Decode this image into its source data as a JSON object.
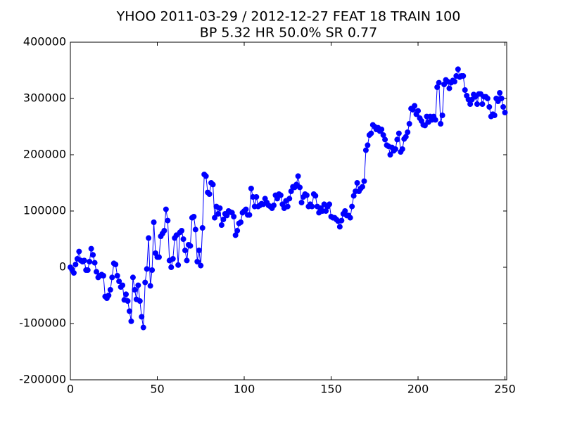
{
  "chart_data": {
    "type": "line",
    "title": "YHOO 2011-03-29 / 2012-12-27 FEAT 18 TRAIN 100",
    "subtitle": "BP 5.32 HR 50.0%  SR 0.77",
    "xlim": [
      0,
      251
    ],
    "xticks": [
      0,
      50,
      100,
      150,
      200,
      250
    ],
    "ylim": [
      -200000,
      400000
    ],
    "yticks": [
      -200000,
      -100000,
      0,
      100000,
      200000,
      300000,
      400000
    ],
    "grid": false,
    "series": [
      {
        "color": "#0000ff",
        "values": [
          0,
          -5000,
          -10000,
          5000,
          15000,
          28000,
          12000,
          10000,
          12000,
          -5000,
          -5000,
          10000,
          33000,
          22000,
          8000,
          -8000,
          -18000,
          -15000,
          -13000,
          -15000,
          -52000,
          -55000,
          -50000,
          -40000,
          -18000,
          7000,
          5000,
          -15000,
          -25000,
          -35000,
          -32000,
          -58000,
          -48000,
          -60000,
          -78000,
          -96000,
          -18000,
          -40000,
          -57000,
          -32000,
          -60000,
          -88000,
          -107000,
          -27000,
          -3000,
          52000,
          -33000,
          -5000,
          80000,
          25000,
          18000,
          18000,
          55000,
          60000,
          65000,
          103000,
          83000,
          12000,
          0,
          15000,
          52000,
          57000,
          4000,
          62000,
          65000,
          50000,
          30000,
          12000,
          40000,
          38000,
          88000,
          90000,
          67000,
          10000,
          30000,
          3000,
          70000,
          165000,
          162000,
          133000,
          130000,
          150000,
          147000,
          88000,
          108000,
          95000,
          105000,
          75000,
          85000,
          95000,
          92000,
          100000,
          98000,
          97000,
          90000,
          57000,
          65000,
          78000,
          80000,
          97000,
          100000,
          103000,
          93000,
          93000,
          140000,
          125000,
          108000,
          125000,
          108000,
          110000,
          113000,
          112000,
          122000,
          115000,
          110000,
          108000,
          105000,
          110000,
          128000,
          122000,
          130000,
          128000,
          112000,
          105000,
          118000,
          108000,
          122000,
          135000,
          143000,
          142000,
          147000,
          162000,
          142000,
          115000,
          125000,
          130000,
          128000,
          108000,
          112000,
          108000,
          130000,
          127000,
          108000,
          97000,
          105000,
          100000,
          112000,
          100000,
          108000,
          112000,
          90000,
          88000,
          88000,
          85000,
          82000,
          72000,
          83000,
          95000,
          100000,
          92000,
          92000,
          88000,
          108000,
          127000,
          135000,
          150000,
          135000,
          140000,
          143000,
          153000,
          208000,
          217000,
          235000,
          238000,
          253000,
          250000,
          245000,
          248000,
          242000,
          245000,
          235000,
          227000,
          217000,
          215000,
          200000,
          213000,
          207000,
          210000,
          227000,
          238000,
          205000,
          210000,
          228000,
          232000,
          240000,
          255000,
          282000,
          280000,
          287000,
          272000,
          278000,
          265000,
          260000,
          253000,
          252000,
          268000,
          258000,
          268000,
          262000,
          268000,
          262000,
          320000,
          328000,
          255000,
          270000,
          325000,
          333000,
          330000,
          318000,
          328000,
          332000,
          330000,
          340000,
          352000,
          338000,
          340000,
          340000,
          315000,
          305000,
          298000,
          290000,
          298000,
          307000,
          303000,
          290000,
          308000,
          308000,
          290000,
          303000,
          303000,
          300000,
          285000,
          268000,
          272000,
          270000,
          300000,
          295000,
          310000,
          300000,
          285000,
          275000
        ]
      }
    ]
  }
}
